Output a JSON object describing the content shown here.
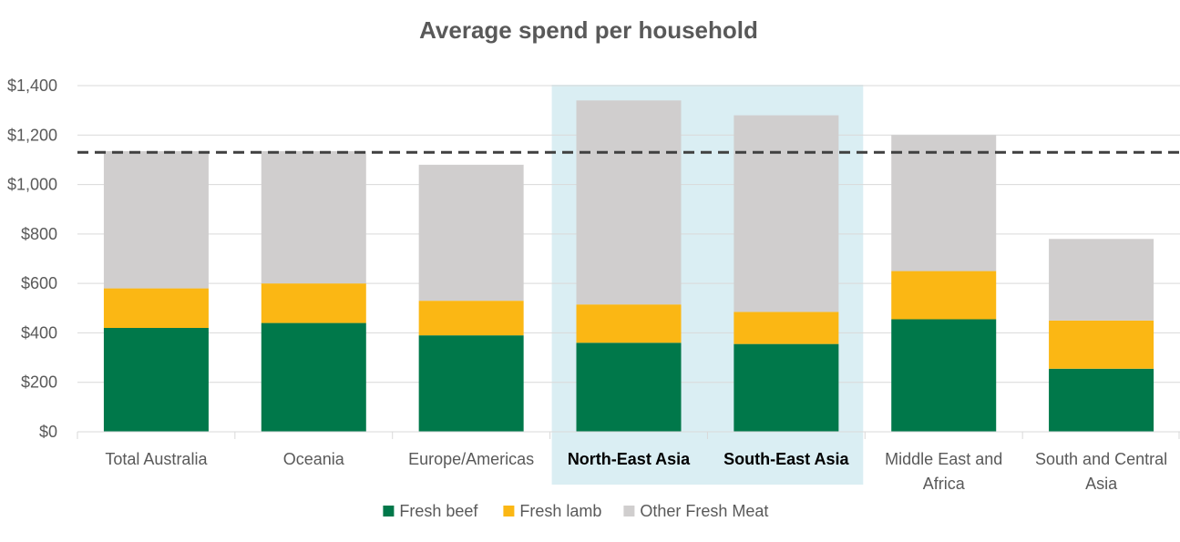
{
  "chart_data": {
    "type": "bar",
    "stacked": true,
    "title": "Average spend per household",
    "xlabel": "",
    "ylabel": "",
    "ylim": [
      0,
      1400
    ],
    "ytick_step": 200,
    "ytick_labels": [
      "$0",
      "$200",
      "$400",
      "$600",
      "$800",
      "$1,000",
      "$1,200",
      "$1,400"
    ],
    "grid": true,
    "categories": [
      [
        "Total Australia"
      ],
      [
        "Oceania"
      ],
      [
        "Europe/Americas"
      ],
      [
        "North-East Asia"
      ],
      [
        "South-East Asia"
      ],
      [
        "Middle East and",
        "Africa"
      ],
      [
        "South and Central",
        "Asia"
      ]
    ],
    "highlighted_categories": [
      "North-East Asia",
      "South-East Asia"
    ],
    "series": [
      {
        "name": "Fresh beef",
        "color": "#00784A",
        "values": [
          420,
          440,
          390,
          360,
          355,
          455,
          255
        ]
      },
      {
        "name": "Fresh lamb",
        "color": "#FBB714",
        "values": [
          160,
          160,
          140,
          155,
          130,
          195,
          195
        ]
      },
      {
        "name": "Other Fresh Meat",
        "color": "#D0CECE",
        "values": [
          555,
          535,
          550,
          825,
          795,
          550,
          330
        ]
      }
    ],
    "reference_line": {
      "value": 1130,
      "style": "dashed",
      "color": "#404040",
      "label": ""
    },
    "highlight_color": "#DAEEF3",
    "legend_position": "bottom-center"
  }
}
